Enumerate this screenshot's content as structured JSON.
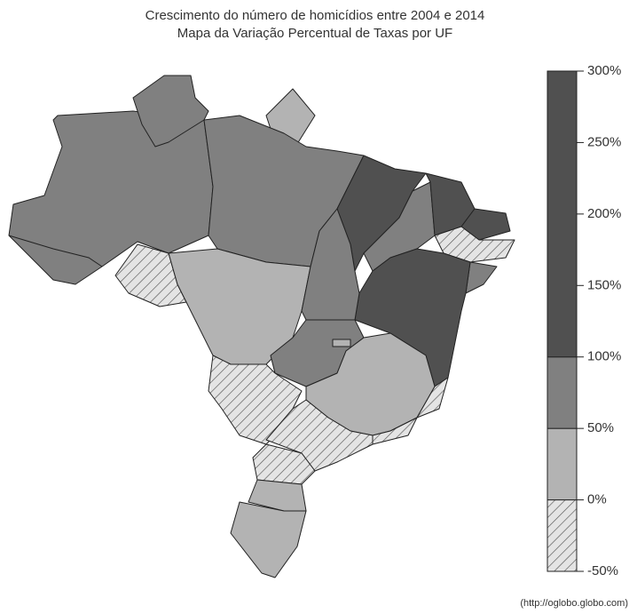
{
  "title": [
    "Crescimento do número de homicídios entre 2004 e 2014",
    "Mapa da Variação Percentual de Taxas por UF"
  ],
  "legend": {
    "bins": [
      -50,
      0,
      50,
      100,
      300
    ],
    "colors": [
      "hatch",
      "#b3b3b3",
      "#808080",
      "#505050"
    ],
    "lim": [
      -50,
      300
    ],
    "ticks": [
      {
        "value": -50,
        "label": "-50%"
      },
      {
        "value": 0,
        "label": "0%"
      },
      {
        "value": 50,
        "label": "50%"
      },
      {
        "value": 100,
        "label": "100%"
      },
      {
        "value": 150,
        "label": "150%"
      },
      {
        "value": 200,
        "label": "200%"
      },
      {
        "value": 250,
        "label": "250%"
      },
      {
        "value": 300,
        "label": "300%"
      }
    ]
  },
  "source": "(http://oglobo.globo.com)"
}
